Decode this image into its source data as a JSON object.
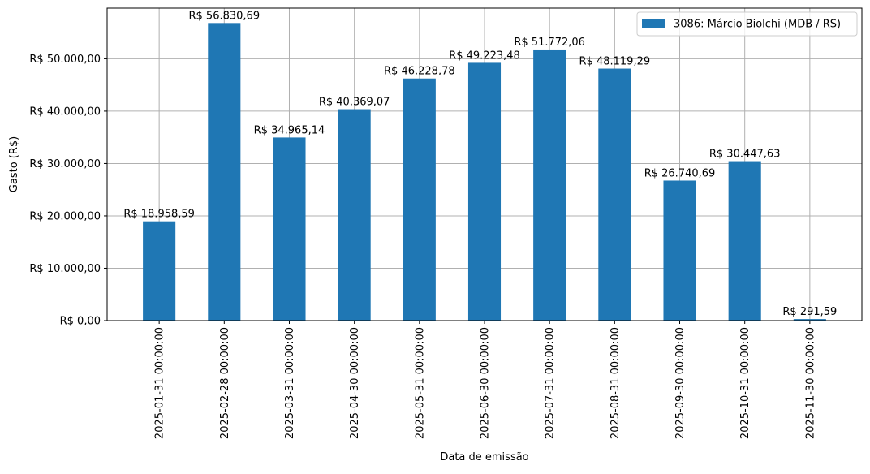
{
  "chart_data": {
    "type": "bar",
    "xlabel": "Data de emissão",
    "ylabel": "Gasto (R$)",
    "ylim": [
      0,
      59672.22
    ],
    "grid": true,
    "legend_position": "top-right",
    "bar_color": "#1f77b4",
    "categories": [
      "2025-01-31 00:00:00",
      "2025-02-28 00:00:00",
      "2025-03-31 00:00:00",
      "2025-04-30 00:00:00",
      "2025-05-31 00:00:00",
      "2025-06-30 00:00:00",
      "2025-07-31 00:00:00",
      "2025-08-31 00:00:00",
      "2025-09-30 00:00:00",
      "2025-10-31 00:00:00",
      "2025-11-30 00:00:00"
    ],
    "series": [
      {
        "name": "3086: Márcio Biolchi (MDB / RS)",
        "values": [
          18958.59,
          56830.69,
          34965.14,
          40369.07,
          46228.78,
          49223.48,
          51772.06,
          48119.29,
          26740.69,
          30447.63,
          291.59
        ]
      }
    ],
    "data_labels": [
      "R$ 18.958,59",
      "R$ 56.830,69",
      "R$ 34.965,14",
      "R$ 40.369,07",
      "R$ 46.228,78",
      "R$ 49.223,48",
      "R$ 51.772,06",
      "R$ 48.119,29",
      "R$ 26.740,69",
      "R$ 30.447,63",
      "R$ 291,59"
    ],
    "yticks": [
      0,
      10000,
      20000,
      30000,
      40000,
      50000
    ],
    "ytick_labels": [
      "R$ 0,00",
      "R$ 10.000,00",
      "R$ 20.000,00",
      "R$ 30.000,00",
      "R$ 40.000,00",
      "R$ 50.000,00"
    ]
  }
}
